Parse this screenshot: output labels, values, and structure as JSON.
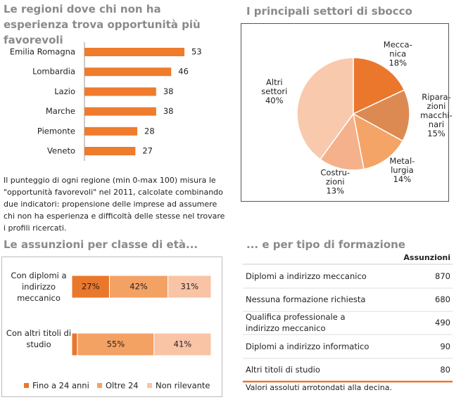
{
  "chart_data": [
    {
      "type": "hbar",
      "title": "Le regioni dove chi non ha esperienza trova opportunità più favorevoli",
      "categories": [
        "Emilia Romagna",
        "Lombardia",
        "Lazio",
        "Marche",
        "Piemonte",
        "Veneto"
      ],
      "values": [
        53,
        46,
        38,
        38,
        28,
        27
      ],
      "color": "#ef7b2d",
      "note": "Il punteggio di ogni regione (min 0-max 100) misura le \"opportunità favorevoli\" nel 2011, calcolate combinando due indicatori: propensione delle imprese ad assumere chi non ha esperienza e difficoltà delle stesse nel trovare i profili ricercati."
    },
    {
      "type": "pie",
      "title": "I principali settori di sbocco",
      "categories": [
        [
          "Mecca-",
          "nica"
        ],
        [
          "Ripara-",
          "zioni",
          "macchi-",
          "nari"
        ],
        [
          "Metal-",
          "lurgia"
        ],
        [
          "Costru-",
          "zioni"
        ],
        [
          "Altri",
          "settori"
        ]
      ],
      "values": [
        18,
        15,
        14,
        13,
        40
      ],
      "value_labels": [
        "18%",
        "15%",
        "14%",
        "13%",
        "40%"
      ],
      "colors": [
        "#ea772c",
        "#dd8a52",
        "#f3a466",
        "#f5b18b",
        "#f9c9ae"
      ]
    },
    {
      "type": "stacked-hbar",
      "title": "Le assunzioni per classe di età...",
      "categories": [
        "Con diplomi a indirizzo meccanico",
        "Con altri titoli di studio"
      ],
      "series": [
        {
          "name": "Fino a 24 anni",
          "color": "#e9772c",
          "values": [
            27,
            4
          ],
          "value_labels": [
            "27%",
            null
          ]
        },
        {
          "name": "Oltre 24",
          "color": "#f4a164",
          "values": [
            42,
            55
          ],
          "value_labels": [
            "42%",
            "55%"
          ]
        },
        {
          "name": "Non rilevante",
          "color": "#f9c3a6",
          "values": [
            31,
            41
          ],
          "value_labels": [
            "31%",
            "41%"
          ]
        }
      ]
    }
  ],
  "table": {
    "title": "... e per tipo di formazione",
    "header": "Assunzioni",
    "rows": [
      [
        "Diplomi  a indirizzo meccanico",
        "870"
      ],
      [
        "Nessuna formazione richiesta",
        "680"
      ],
      [
        "Qualifica professionale  a indirizzo meccanico",
        "490"
      ],
      [
        "Diplomi  a indirizzo informatico",
        "90"
      ],
      [
        "Altri titoli di studio",
        "80"
      ]
    ],
    "footnote": "Valori assoluti arrotondati alla decina."
  }
}
